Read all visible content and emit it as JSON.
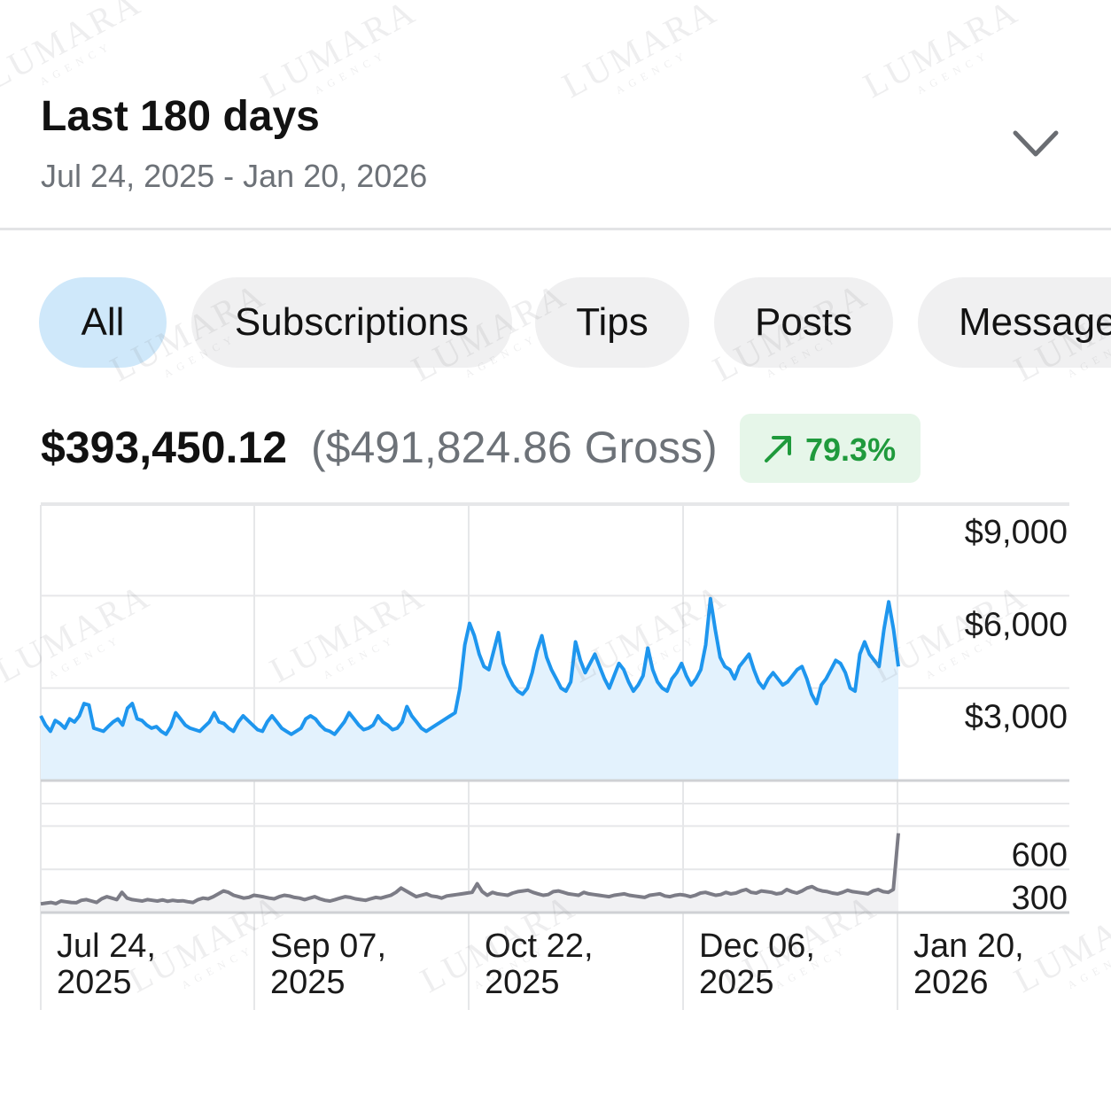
{
  "header": {
    "period_title": "Last 180 days",
    "date_range": "Jul 24, 2025 - Jan 20, 2026"
  },
  "tabs": [
    {
      "label": "All",
      "active": true
    },
    {
      "label": "Subscriptions",
      "active": false
    },
    {
      "label": "Tips",
      "active": false
    },
    {
      "label": "Posts",
      "active": false
    },
    {
      "label": "Messages",
      "active": false
    }
  ],
  "summary": {
    "net": "$393,450.12",
    "gross": "($491,824.86 Gross)",
    "change": "79.3%",
    "change_color": "#1f9a3c"
  },
  "watermark": {
    "name": "LUMARA",
    "sub": "AGENCY"
  },
  "colors": {
    "earnings_line": "#1e96ee",
    "earnings_fill": "#e3f2fd",
    "count_line": "#7c7c86",
    "active_tab": "#cfe8fa"
  },
  "chart_data": [
    {
      "type": "area",
      "series": [
        {
          "name": "",
          "values": [
            2100,
            1800,
            1600,
            1950,
            1850,
            1700,
            2000,
            1900,
            2100,
            2500,
            2450,
            1700,
            1650,
            1600,
            1750,
            1900,
            2000,
            1800,
            2350,
            2500,
            2000,
            1950,
            1800,
            1700,
            1750,
            1600,
            1500,
            1750,
            2200,
            2000,
            1800,
            1700,
            1650,
            1600,
            1750,
            1900,
            2200,
            1900,
            1850,
            1700,
            1600,
            1900,
            2100,
            1950,
            1800,
            1650,
            1600,
            1900,
            2100,
            1900,
            1700,
            1600,
            1500,
            1600,
            1700,
            2000,
            2100,
            2000,
            1800,
            1650,
            1600,
            1500,
            1700,
            1900,
            2200,
            2000,
            1800,
            1650,
            1700,
            1800,
            2100,
            1900,
            1800,
            1650,
            1700,
            1900,
            2400,
            2100,
            1900,
            1700,
            1600,
            1700,
            1800,
            1900,
            2000,
            2100,
            2200,
            3000,
            4400,
            5100,
            4700,
            4100,
            3700,
            3600,
            4200,
            4800,
            3800,
            3400,
            3100,
            2900,
            2800,
            3000,
            3500,
            4200,
            4700,
            4000,
            3600,
            3300,
            3000,
            2900,
            3200,
            4500,
            3900,
            3500,
            3800,
            4100,
            3700,
            3300,
            3000,
            3400,
            3800,
            3600,
            3200,
            2900,
            3100,
            3400,
            4300,
            3600,
            3200,
            3000,
            2900,
            3300,
            3500,
            3800,
            3400,
            3100,
            3300,
            3600,
            4400,
            5900,
            4900,
            4000,
            3700,
            3600,
            3300,
            3700,
            3900,
            4100,
            3600,
            3200,
            3000,
            3300,
            3500,
            3300,
            3100,
            3200,
            3400,
            3600,
            3700,
            3300,
            2800,
            2500,
            3100,
            3300,
            3600,
            3900,
            3800,
            3500,
            3000,
            2900,
            4100,
            4500,
            4100,
            3900,
            3700,
            4900,
            5800,
            4900,
            3700
          ],
          "color": "#1e96ee"
        }
      ],
      "x_ticks": [
        "Jul 24,\n2025",
        "Sep 07,\n2025",
        "Oct 22,\n2025",
        "Dec 06,\n2025",
        "Jan 20,\n2026"
      ],
      "y_ticks": [
        "$9,000",
        "$6,000",
        "$3,000"
      ],
      "ylim": [
        0,
        9000
      ],
      "grid": true
    },
    {
      "type": "line",
      "series": [
        {
          "name": "",
          "values": [
            60,
            65,
            70,
            62,
            80,
            75,
            70,
            68,
            85,
            90,
            80,
            70,
            95,
            110,
            100,
            90,
            140,
            100,
            90,
            85,
            80,
            90,
            85,
            80,
            88,
            78,
            85,
            80,
            82,
            75,
            70,
            90,
            100,
            95,
            110,
            130,
            150,
            140,
            120,
            110,
            100,
            105,
            120,
            115,
            108,
            100,
            95,
            110,
            120,
            115,
            105,
            100,
            90,
            100,
            110,
            95,
            85,
            80,
            90,
            100,
            110,
            105,
            95,
            90,
            85,
            95,
            105,
            100,
            110,
            120,
            140,
            170,
            150,
            130,
            110,
            120,
            130,
            115,
            110,
            100,
            115,
            120,
            125,
            130,
            135,
            140,
            200,
            145,
            120,
            140,
            130,
            125,
            120,
            135,
            145,
            150,
            155,
            140,
            130,
            120,
            125,
            145,
            150,
            140,
            130,
            125,
            120,
            140,
            130,
            125,
            120,
            115,
            110,
            120,
            125,
            130,
            120,
            115,
            110,
            105,
            120,
            125,
            130,
            115,
            110,
            120,
            125,
            120,
            110,
            120,
            135,
            140,
            130,
            120,
            125,
            140,
            130,
            135,
            150,
            160,
            140,
            135,
            150,
            145,
            140,
            130,
            135,
            160,
            145,
            135,
            150,
            170,
            180,
            160,
            150,
            145,
            135,
            130,
            140,
            155,
            145,
            140,
            135,
            130,
            150,
            160,
            145,
            140,
            160,
            550
          ],
          "color": "#7c7c86"
        }
      ],
      "y_ticks": [
        "600",
        "300"
      ],
      "ylim": [
        0,
        750
      ],
      "grid": true
    }
  ]
}
